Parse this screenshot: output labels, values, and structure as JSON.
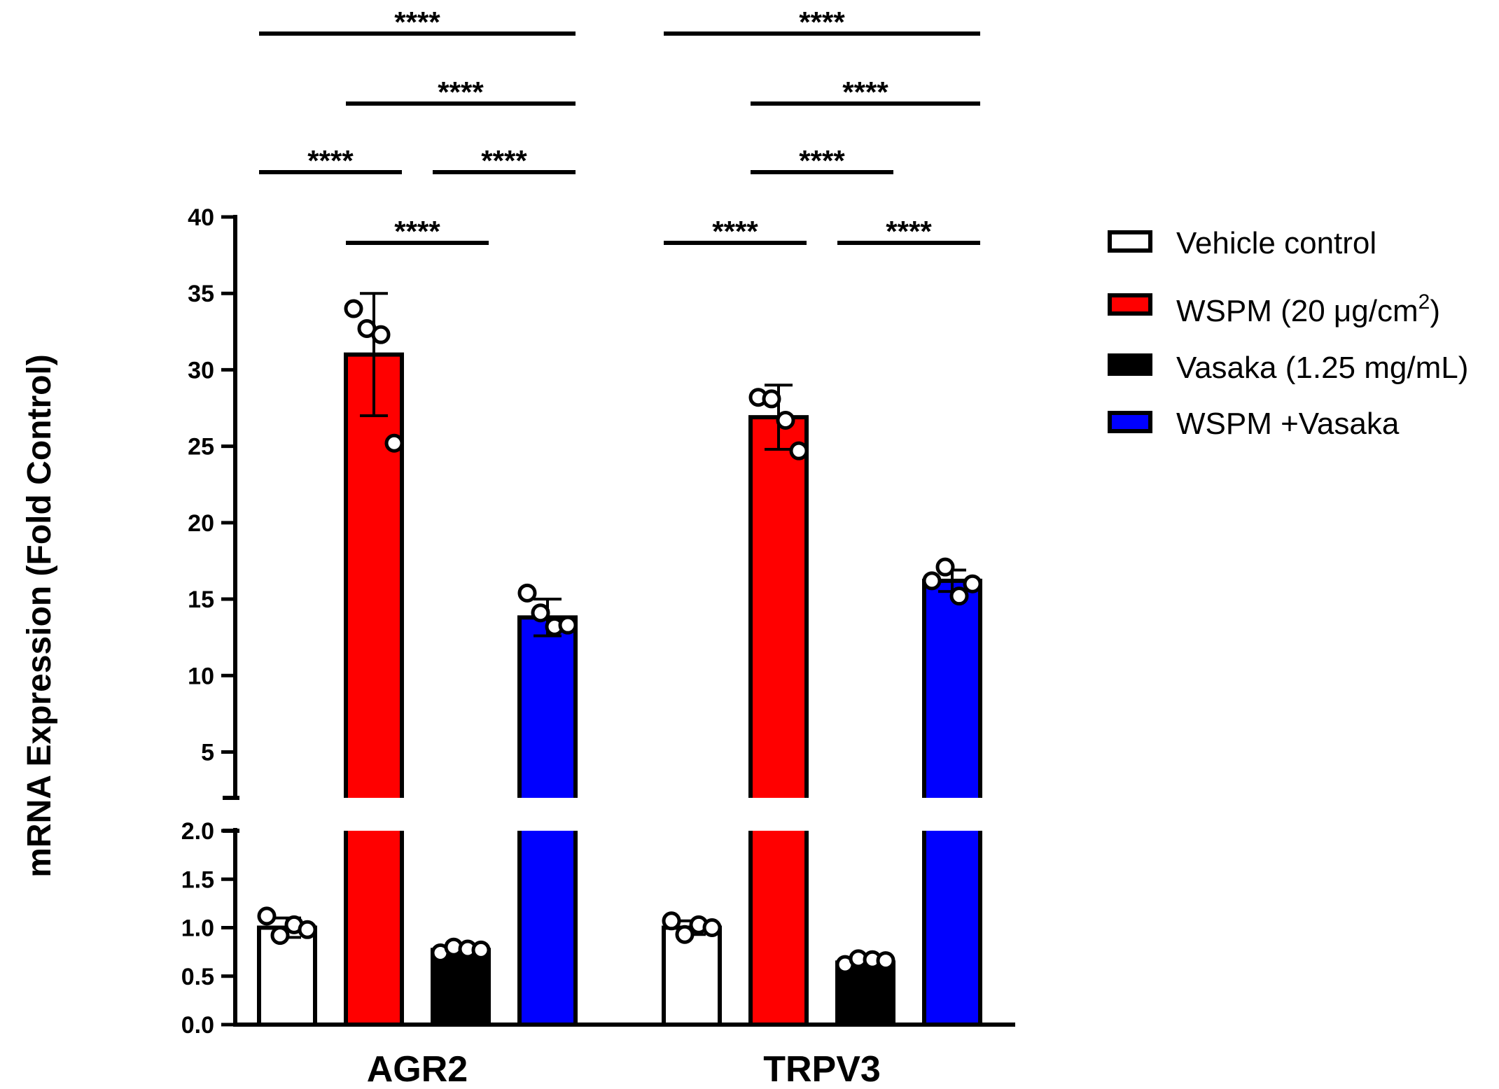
{
  "chart_data": {
    "type": "bar",
    "ylabel": "mRNA Expression (Fold Control)",
    "xlabel": "",
    "axis_break": {
      "lower_ylim": [
        0,
        2.0
      ],
      "upper_ylim": [
        2.0,
        40
      ]
    },
    "lower_ticks": [
      0.0,
      0.5,
      1.0,
      1.5,
      2.0
    ],
    "lower_tick_labels": [
      "0.0",
      "0.5",
      "1.0",
      "1.5",
      "2.0"
    ],
    "upper_ticks": [
      5,
      10,
      15,
      20,
      25,
      30,
      35,
      40
    ],
    "upper_tick_labels": [
      "5",
      "10",
      "15",
      "20",
      "25",
      "30",
      "35",
      "40"
    ],
    "categories": [
      "AGR2",
      "TRPV3"
    ],
    "series": [
      {
        "name": "Vehicle control",
        "color": "#ffffff",
        "values": [
          1.0,
          1.0
        ],
        "errors": [
          0.1,
          0.07
        ],
        "points": [
          [
            1.12,
            0.92,
            1.03,
            0.98
          ],
          [
            1.07,
            0.93,
            1.03,
            1.0
          ]
        ]
      },
      {
        "name": "WSPM (20 μg/cm2)",
        "color": "#ff0000",
        "values": [
          31.0,
          26.9
        ],
        "errors": [
          4.0,
          2.1
        ],
        "points": [
          [
            34.0,
            32.7,
            32.3,
            25.2
          ],
          [
            28.2,
            28.1,
            26.7,
            24.7
          ]
        ]
      },
      {
        "name": "Vasaka (1.25 mg/mL)",
        "color": "#000000",
        "values": [
          0.77,
          0.64
        ],
        "errors": [
          0.03,
          0.03
        ],
        "points": [
          [
            0.74,
            0.8,
            0.78,
            0.77
          ],
          [
            0.62,
            0.68,
            0.67,
            0.66
          ]
        ]
      },
      {
        "name": "WSPM +Vasaka",
        "color": "#0000ff",
        "values": [
          13.8,
          16.2
        ],
        "errors": [
          1.2,
          0.7
        ],
        "points": [
          [
            15.4,
            14.1,
            13.2,
            13.3
          ],
          [
            16.2,
            17.1,
            15.2,
            16.0
          ]
        ]
      }
    ],
    "significance": [
      {
        "group": 0,
        "from": 0,
        "to": 3,
        "level": 0,
        "label": "****"
      },
      {
        "group": 0,
        "from": 1,
        "to": 3,
        "level": 1,
        "label": "****"
      },
      {
        "group": 0,
        "from": 0,
        "to": 1,
        "level": 2,
        "label": "****"
      },
      {
        "group": 0,
        "from": 2,
        "to": 3,
        "level": 2,
        "label": "****"
      },
      {
        "group": 0,
        "from": 1,
        "to": 2,
        "level": 3,
        "label": "****"
      },
      {
        "group": 1,
        "from": 0,
        "to": 3,
        "level": 0,
        "label": "****"
      },
      {
        "group": 1,
        "from": 1,
        "to": 3,
        "level": 1,
        "label": "****"
      },
      {
        "group": 1,
        "from": 1,
        "to": 2,
        "level": 2,
        "label": "****"
      },
      {
        "group": 1,
        "from": 0,
        "to": 1,
        "level": 3,
        "label": "****"
      },
      {
        "group": 1,
        "from": 2,
        "to": 3,
        "level": 3,
        "label": "****"
      }
    ],
    "legend": {
      "position": "right",
      "entries": [
        {
          "label": "Vehicle control"
        },
        {
          "label": "WSPM (20 ",
          "mu": "μ",
          "after_mu": "g/cm",
          "sup": "2",
          "close": ")"
        },
        {
          "label": "Vasaka (1.25 mg/mL)"
        },
        {
          "label": "WSPM +Vasaka"
        }
      ]
    }
  }
}
